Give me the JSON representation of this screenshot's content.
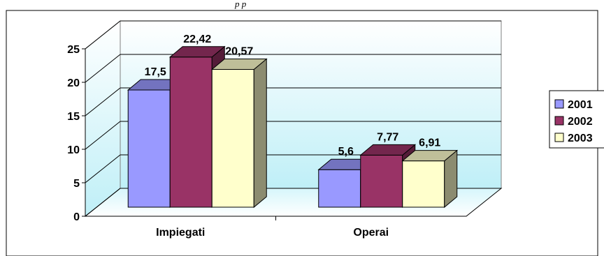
{
  "header_fragment": "p    p",
  "chart_data": {
    "type": "bar",
    "categories": [
      "Impiegati",
      "Operai"
    ],
    "series": [
      {
        "name": "2001",
        "values": [
          17.5,
          5.6
        ],
        "labels": [
          "17,5",
          "5,6"
        ],
        "color": "#9999ff"
      },
      {
        "name": "2002",
        "values": [
          22.42,
          7.77
        ],
        "labels": [
          "22,42",
          "7,77"
        ],
        "color": "#993366"
      },
      {
        "name": "2003",
        "values": [
          20.57,
          6.91
        ],
        "labels": [
          "20,57",
          "6,91"
        ],
        "color": "#ffffcc"
      }
    ],
    "ylim": [
      0,
      25
    ],
    "yticks": [
      "0",
      "5",
      "10",
      "15",
      "20",
      "25"
    ],
    "grid": true,
    "legend": "right",
    "three_d": true
  }
}
